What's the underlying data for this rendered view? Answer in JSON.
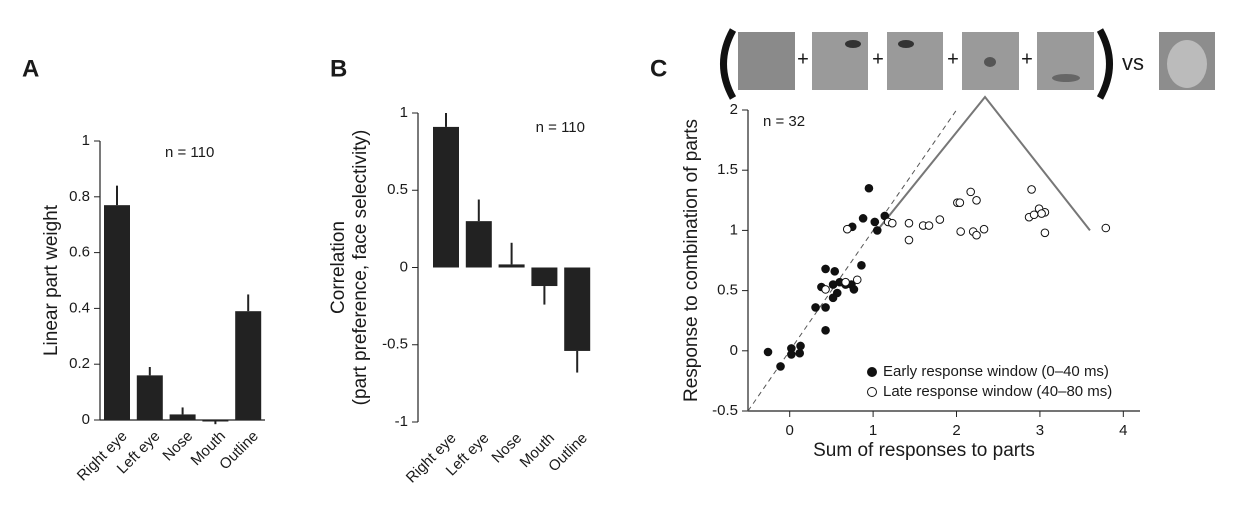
{
  "chart_data": [
    {
      "type": "bar",
      "panel_label": "A",
      "ylabel": [
        "Linear part weight"
      ],
      "annotation": "n = 110",
      "categories": [
        "Right eye",
        "Left eye",
        "Nose",
        "Mouth",
        "Outline"
      ],
      "values": [
        0.77,
        0.16,
        0.02,
        -0.005,
        0.39
      ],
      "errors": [
        0.07,
        0.03,
        0.025,
        0.01,
        0.06
      ],
      "color": "#222222",
      "ylim": [
        0,
        1
      ],
      "yticks": [
        0,
        0.2,
        0.4,
        0.6,
        0.8,
        1
      ]
    },
    {
      "type": "bar",
      "panel_label": "B",
      "ylabel": [
        "Correlation",
        "(part preference, face selectivity)"
      ],
      "annotation": "n = 110",
      "categories": [
        "Right eye",
        "Left eye",
        "Nose",
        "Mouth",
        "Outline"
      ],
      "values": [
        0.91,
        0.3,
        0.02,
        -0.12,
        -0.54
      ],
      "errors": [
        0.09,
        0.14,
        0.14,
        0.12,
        0.14
      ],
      "color": "#222222",
      "ylim": [
        -1,
        1
      ],
      "yticks": [
        -1,
        -0.5,
        0,
        0.5,
        1
      ]
    },
    {
      "type": "scatter",
      "panel_label": "C",
      "xlabel": "Sum of responses to parts",
      "ylabel": [
        "Response to combination of parts"
      ],
      "annotation": "n = 32",
      "operators": [
        "+",
        "+",
        "+",
        "+"
      ],
      "comparison": "vs",
      "xlim": [
        -0.5,
        4.2
      ],
      "ylim": [
        -0.5,
        2
      ],
      "xticks": [
        0,
        1,
        2,
        3,
        4
      ],
      "yticks": [
        -0.5,
        0,
        0.5,
        1,
        1.5,
        2
      ],
      "series": [
        {
          "name": "Early response window (0–40 ms)",
          "color": "#111111",
          "x": [
            -0.26,
            0.02,
            0.13,
            0.02,
            -0.11,
            0.12,
            0.31,
            0.43,
            0.43,
            0.38,
            0.43,
            0.54,
            0.52,
            0.6,
            0.67,
            0.57,
            0.52,
            0.86,
            0.74,
            0.77,
            0.75,
            0.88,
            0.95,
            1.02,
            1.14,
            1.05
          ],
          "y": [
            -0.01,
            0.02,
            0.04,
            -0.03,
            -0.13,
            -0.02,
            0.36,
            0.36,
            0.17,
            0.53,
            0.68,
            0.66,
            0.55,
            0.57,
            0.55,
            0.48,
            0.44,
            0.71,
            0.55,
            0.51,
            1.03,
            1.1,
            1.35,
            1.07,
            1.12,
            1.0
          ]
        },
        {
          "name": "Late response window (40–80 ms)",
          "color": "#ffffff",
          "x": [
            0.69,
            1.18,
            1.23,
            1.43,
            1.43,
            1.6,
            1.67,
            1.8,
            2.01,
            2.04,
            2.17,
            2.24,
            2.05,
            2.2,
            2.24,
            2.33,
            2.9,
            2.87,
            2.93,
            2.99,
            3.06,
            3.06,
            3.79,
            3.02,
            0.43,
            0.67,
            0.81
          ],
          "y": [
            1.01,
            1.07,
            1.06,
            0.92,
            1.06,
            1.04,
            1.04,
            1.09,
            1.23,
            1.23,
            1.32,
            1.25,
            0.99,
            0.99,
            0.96,
            1.01,
            1.34,
            1.11,
            1.13,
            1.18,
            1.15,
            0.98,
            1.02,
            1.14,
            0.51,
            0.57,
            0.59
          ]
        }
      ]
    }
  ]
}
